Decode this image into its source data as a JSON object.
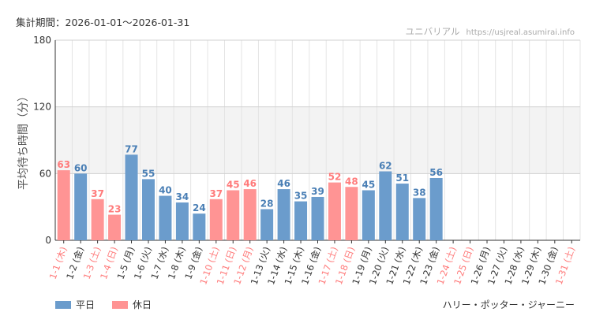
{
  "period_label": "集計期間：2026-01-01〜2026-01-31",
  "watermark": {
    "brand": "ユニバリアル",
    "url": "https://usjreal.asumirai.info"
  },
  "attraction_name": "ハリー・ポッター・ジャーニー",
  "colors": {
    "weekday": "#6b9ccc",
    "holiday": "#ff9494",
    "weekday_text": "#4a7fb5",
    "holiday_text": "#ff7b7b",
    "grid": "#e4e4e4",
    "band": "#f3f3f3"
  },
  "chart_data": {
    "type": "bar",
    "title": "",
    "xlabel": "",
    "ylabel": "平均待ち時間（分）",
    "ylim": [
      0,
      180
    ],
    "yticks": [
      0,
      60,
      120,
      180
    ],
    "band": [
      60,
      120
    ],
    "legend": [
      {
        "key": "weekday",
        "label": "平日"
      },
      {
        "key": "holiday",
        "label": "休日"
      }
    ],
    "categories": [
      "1-1 (木)",
      "1-2 (金)",
      "1-3 (土)",
      "1-4 (日)",
      "1-5 (月)",
      "1-6 (火)",
      "1-7 (水)",
      "1-8 (木)",
      "1-9 (金)",
      "1-10 (土)",
      "1-11 (日)",
      "1-12 (月)",
      "1-13 (火)",
      "1-14 (水)",
      "1-15 (木)",
      "1-16 (金)",
      "1-17 (土)",
      "1-18 (日)",
      "1-19 (月)",
      "1-20 (火)",
      "1-21 (水)",
      "1-22 (木)",
      "1-23 (金)",
      "1-24 (土)",
      "1-25 (日)",
      "1-26 (月)",
      "1-27 (火)",
      "1-28 (水)",
      "1-29 (木)",
      "1-30 (金)",
      "1-31 (土)"
    ],
    "values": [
      63,
      60,
      37,
      23,
      77,
      55,
      40,
      34,
      24,
      37,
      45,
      46,
      28,
      46,
      35,
      39,
      52,
      48,
      45,
      62,
      51,
      38,
      56,
      null,
      null,
      null,
      null,
      null,
      null,
      null,
      null
    ],
    "day_type": [
      "holiday",
      "weekday",
      "holiday",
      "holiday",
      "weekday",
      "weekday",
      "weekday",
      "weekday",
      "weekday",
      "holiday",
      "holiday",
      "holiday",
      "weekday",
      "weekday",
      "weekday",
      "weekday",
      "holiday",
      "holiday",
      "weekday",
      "weekday",
      "weekday",
      "weekday",
      "weekday",
      "holiday",
      "holiday",
      "weekday",
      "weekday",
      "weekday",
      "weekday",
      "weekday",
      "holiday"
    ]
  }
}
